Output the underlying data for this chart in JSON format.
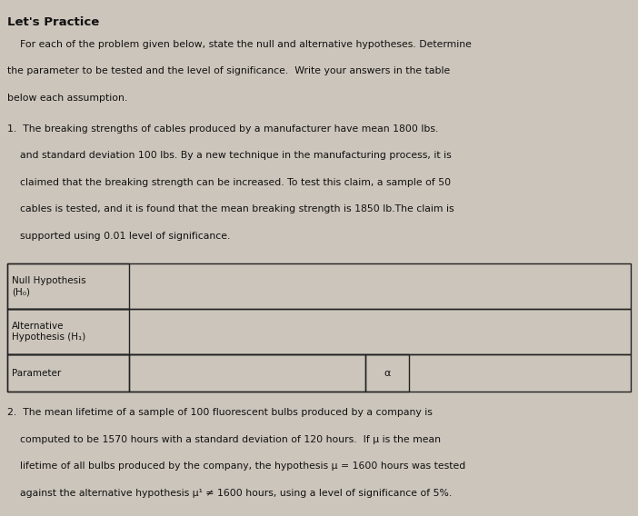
{
  "title": "Let's Practice",
  "bg_color": "#ccc5bb",
  "text_color": "#111111",
  "title_fontsize": 9.5,
  "body_fontsize": 7.8,
  "table_fontsize": 7.5,
  "fig_width": 7.02,
  "fig_height": 5.68,
  "intro_lines": [
    "    For each of the problem given below, state the null and alternative hypotheses. Determine",
    "the parameter to be tested and the level of significance.  Write your answers in the table",
    "below each assumption."
  ],
  "problem1_lines": [
    "1.  The breaking strengths of cables produced by a manufacturer have mean 1800 lbs.",
    "    and standard deviation 100 lbs. By a new technique in the manufacturing process, it is",
    "    claimed that the breaking strength can be increased. To test this claim, a sample of 50",
    "    cables is tested, and it is found that the mean breaking strength is 1850 lb.The claim is",
    "    supported using 0.01 level of significance."
  ],
  "table_row0_col0": "Null Hypothesis\n(H₀)",
  "table_row1_col0": "Alternative\nHypothesis (H₁)",
  "table_row2_col0": "Parameter",
  "table_alpha": "α",
  "problem2_lines": [
    "2.  The mean lifetime of a sample of 100 fluorescent bulbs produced by a company is",
    "    computed to be 1570 hours with a standard deviation of 120 hours.  If μ is the mean",
    "    lifetime of all bulbs produced by the company, the hypothesis μ = 1600 hours was tested",
    "    against the alternative hypothesis μ¹ ≠ 1600 hours, using a level of significance of 5%."
  ]
}
